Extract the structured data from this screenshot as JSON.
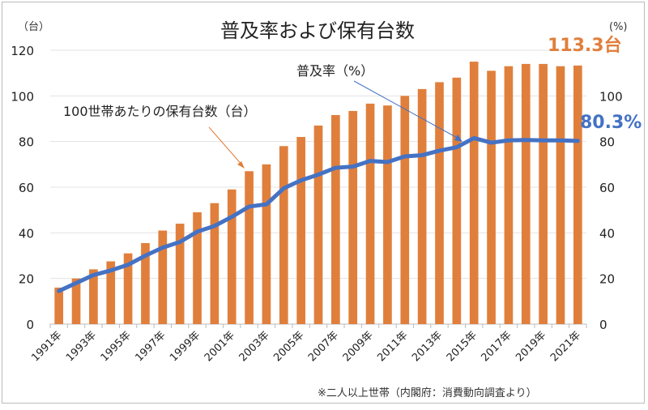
{
  "chart_data": {
    "type": "bar+line",
    "title": "普及率および保有台数",
    "left_unit": "（台）",
    "right_unit": "(%)",
    "categories": [
      "1991年",
      "1992年",
      "1993年",
      "1994年",
      "1995年",
      "1996年",
      "1997年",
      "1998年",
      "1999年",
      "2000年",
      "2001年",
      "2002年",
      "2003年",
      "2004年",
      "2005年",
      "2006年",
      "2007年",
      "2008年",
      "2009年",
      "2010年",
      "2011年",
      "2012年",
      "2013年",
      "2014年",
      "2015年",
      "2016年",
      "2017年",
      "2018年",
      "2019年",
      "2020年",
      "2021年"
    ],
    "tick_labels": [
      "1991年",
      "1993年",
      "1995年",
      "1997年",
      "1999年",
      "2001年",
      "2003年",
      "2005年",
      "2007年",
      "2009年",
      "2011年",
      "2013年",
      "2015年",
      "2017年",
      "2019年",
      "2021年"
    ],
    "series": [
      {
        "name": "100世帯あたりの保有台数（台）",
        "type": "bar",
        "axis": "left",
        "color": "#E07F3C",
        "values": [
          16,
          20,
          24,
          27.5,
          31,
          35.5,
          41,
          44,
          49,
          53,
          59,
          67,
          70,
          78,
          82,
          87,
          91.6,
          93.4,
          96.6,
          95.8,
          100,
          103,
          106,
          108,
          115,
          111,
          113,
          114,
          114,
          113,
          113.3
        ]
      },
      {
        "name": "普及率（%）",
        "type": "line",
        "axis": "right",
        "color": "#4472C4",
        "values": [
          14.5,
          18,
          21.5,
          23.5,
          26,
          30,
          33.5,
          36,
          40.5,
          43,
          47,
          51.5,
          52.5,
          59.5,
          63,
          65.5,
          68.5,
          69,
          71.5,
          71,
          73.5,
          74,
          76,
          77.5,
          81.5,
          79.5,
          80.5,
          80.7,
          80.5,
          80.5,
          80.3
        ]
      }
    ],
    "left_axis": {
      "range": [
        0,
        120
      ],
      "ticks": [
        "0",
        "20",
        "40",
        "60",
        "80",
        "100",
        "120"
      ]
    },
    "right_axis": {
      "range": [
        0,
        120
      ],
      "ticks": [
        "0",
        "20",
        "40",
        "60",
        "80",
        "100"
      ]
    },
    "grid": true,
    "annotations": {
      "bar_label": "100世帯あたりの保有台数（台）",
      "line_label": "普及率（%）",
      "bar_last_value": "113.3台",
      "line_last_value": "80.3%"
    },
    "source_note": "※二人以上世帯（内閣府：消費動向調査より）"
  }
}
